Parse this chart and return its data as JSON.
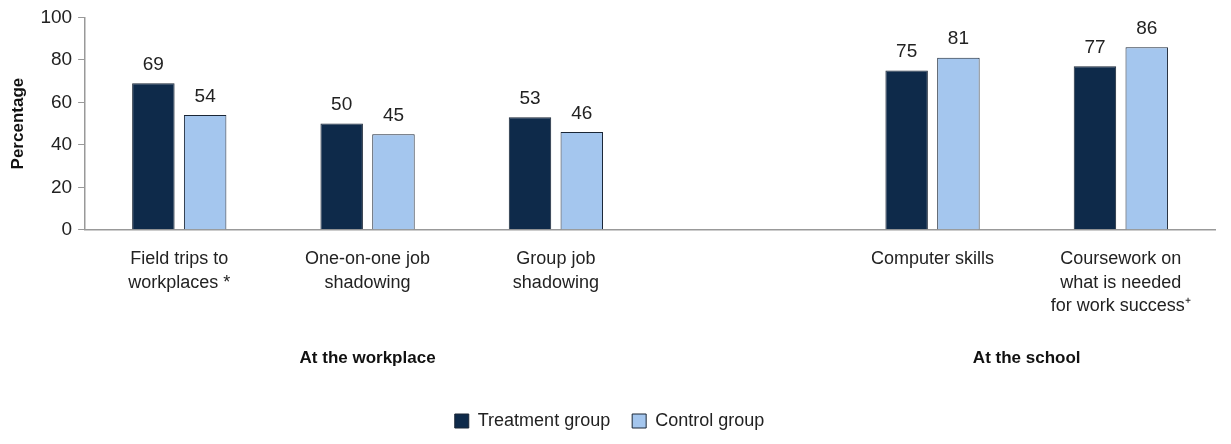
{
  "chart_data": {
    "type": "bar",
    "ylabel": "Percentage",
    "categories": [
      "Field trips to\nworkplaces *",
      "One-on-one job\nshadowing",
      "Group job\nshadowing",
      null,
      "Computer skills",
      "Coursework on\nwhat is needed\nfor work success⁺"
    ],
    "series": [
      {
        "name": "Treatment group",
        "color": "#0e2a4a",
        "values": [
          69,
          50,
          53,
          null,
          75,
          77
        ]
      },
      {
        "name": "Control group",
        "color": "#a4c6ee",
        "values": [
          54,
          45,
          46,
          null,
          81,
          86
        ]
      }
    ],
    "ylim": [
      0,
      100
    ],
    "yticks": [
      0,
      20,
      40,
      60,
      80,
      100
    ],
    "data_labels": true,
    "grid": false,
    "legend": "bottom",
    "annotations": [
      "At the workplace",
      "At the school"
    ]
  }
}
